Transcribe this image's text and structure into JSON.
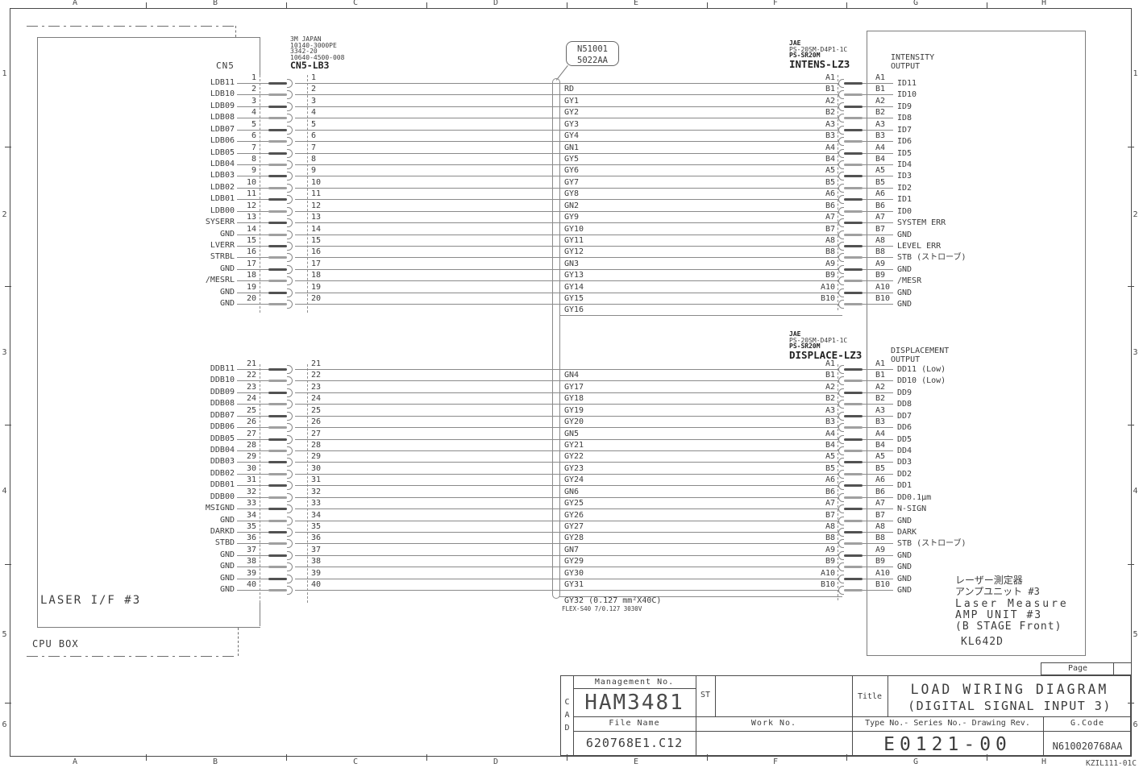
{
  "frame": {
    "columns": [
      "A",
      "B",
      "C",
      "D",
      "E",
      "F",
      "G",
      "H"
    ],
    "rows": [
      "1",
      "2",
      "3",
      "4",
      "5",
      "6"
    ],
    "footnote": "KZIL111-01C"
  },
  "cpu_box": {
    "label": "CPU BOX"
  },
  "laser_if": {
    "label": "LASER I/F #3"
  },
  "cn5": {
    "connector_label": "CN5",
    "maker": "3M JAPAN",
    "part_numbers": [
      "10140-3000PE",
      "3342-20",
      "10640-4500-008"
    ],
    "cable_name": "CN5-LB3"
  },
  "cable_callout": {
    "line1": "N51001",
    "line2": "5022AA"
  },
  "spare_wires": {
    "gy16": "GY16",
    "gy32": "GY32 (0.127 mm²X40C)",
    "gy32_note": "FLEX-S40 7/0.127 3030V"
  },
  "intensity_connector": {
    "maker": "JAE",
    "part_number": "PS-20SM-D4P1-1C",
    "shell": "PS-SR20M",
    "name": "INTENS-LZ3",
    "output_title_line1": "INTENSITY",
    "output_title_line2": "OUTPUT"
  },
  "displacement_connector": {
    "maker": "JAE",
    "part_number": "PS-20SM-D4P1-1C",
    "shell": "PS-SR20M",
    "name": "DISPLACE-LZ3",
    "output_title_line1": "DISPLACEMENT",
    "output_title_line2": "OUTPUT"
  },
  "amp_unit": {
    "label_jp1": "レーザー測定器",
    "label_jp2": "アンプユニット #3",
    "label_en1": "Laser Measure",
    "label_en2": "AMP UNIT #3",
    "label_en3": "(B STAGE Front)",
    "model": "KL642D"
  },
  "section1": {
    "rows": [
      {
        "pin": "1",
        "left": "LDB11",
        "wire": "",
        "ab": "A1",
        "out": "ID11"
      },
      {
        "pin": "2",
        "left": "LDB10",
        "wire": "RD",
        "ab": "B1",
        "out": "ID10"
      },
      {
        "pin": "3",
        "left": "LDB09",
        "wire": "GY1",
        "ab": "A2",
        "out": "ID9"
      },
      {
        "pin": "4",
        "left": "LDB08",
        "wire": "GY2",
        "ab": "B2",
        "out": "ID8"
      },
      {
        "pin": "5",
        "left": "LDB07",
        "wire": "GY3",
        "ab": "A3",
        "out": "ID7"
      },
      {
        "pin": "6",
        "left": "LDB06",
        "wire": "GY4",
        "ab": "B3",
        "out": "ID6"
      },
      {
        "pin": "7",
        "left": "LDB05",
        "wire": "GN1",
        "ab": "A4",
        "out": "ID5"
      },
      {
        "pin": "8",
        "left": "LDB04",
        "wire": "GY5",
        "ab": "B4",
        "out": "ID4"
      },
      {
        "pin": "9",
        "left": "LDB03",
        "wire": "GY6",
        "ab": "A5",
        "out": "ID3"
      },
      {
        "pin": "10",
        "left": "LDB02",
        "wire": "GY7",
        "ab": "B5",
        "out": "ID2"
      },
      {
        "pin": "11",
        "left": "LDB01",
        "wire": "GY8",
        "ab": "A6",
        "out": "ID1"
      },
      {
        "pin": "12",
        "left": "LDB00",
        "wire": "GN2",
        "ab": "B6",
        "out": "ID0"
      },
      {
        "pin": "13",
        "left": "SYSERR",
        "wire": "GY9",
        "ab": "A7",
        "out": "SYSTEM ERR"
      },
      {
        "pin": "14",
        "left": "GND",
        "wire": "GY10",
        "ab": "B7",
        "out": "GND"
      },
      {
        "pin": "15",
        "left": "LVERR",
        "wire": "GY11",
        "ab": "A8",
        "out": "LEVEL ERR"
      },
      {
        "pin": "16",
        "left": "STRBL",
        "wire": "GY12",
        "ab": "B8",
        "out": "STB (ストローブ)"
      },
      {
        "pin": "17",
        "left": "GND",
        "wire": "GN3",
        "ab": "A9",
        "out": "GND"
      },
      {
        "pin": "18",
        "left": "/MESRL",
        "wire": "GY13",
        "ab": "B9",
        "out": "/MESR"
      },
      {
        "pin": "19",
        "left": "GND",
        "wire": "GY14",
        "ab": "A10",
        "out": "GND"
      },
      {
        "pin": "20",
        "left": "GND",
        "wire": "GY15",
        "ab": "B10",
        "out": "GND"
      }
    ]
  },
  "section2": {
    "rows": [
      {
        "pin": "21",
        "left": "DDB11",
        "wire": "",
        "ab": "A1",
        "out": "DD11 (Low)"
      },
      {
        "pin": "22",
        "left": "DDB10",
        "wire": "GN4",
        "ab": "B1",
        "out": "DD10 (Low)"
      },
      {
        "pin": "23",
        "left": "DDB09",
        "wire": "GY17",
        "ab": "A2",
        "out": "DD9"
      },
      {
        "pin": "24",
        "left": "DDB08",
        "wire": "GY18",
        "ab": "B2",
        "out": "DD8"
      },
      {
        "pin": "25",
        "left": "DDB07",
        "wire": "GY19",
        "ab": "A3",
        "out": "DD7"
      },
      {
        "pin": "26",
        "left": "DDB06",
        "wire": "GY20",
        "ab": "B3",
        "out": "DD6"
      },
      {
        "pin": "27",
        "left": "DDB05",
        "wire": "GN5",
        "ab": "A4",
        "out": "DD5"
      },
      {
        "pin": "28",
        "left": "DDB04",
        "wire": "GY21",
        "ab": "B4",
        "out": "DD4"
      },
      {
        "pin": "29",
        "left": "DDB03",
        "wire": "GY22",
        "ab": "A5",
        "out": "DD3"
      },
      {
        "pin": "30",
        "left": "DDB02",
        "wire": "GY23",
        "ab": "B5",
        "out": "DD2"
      },
      {
        "pin": "31",
        "left": "DDB01",
        "wire": "GY24",
        "ab": "A6",
        "out": "DD1"
      },
      {
        "pin": "32",
        "left": "DDB00",
        "wire": "GN6",
        "ab": "B6",
        "out": "DD0.1μm"
      },
      {
        "pin": "33",
        "left": "MSIGND",
        "wire": "GY25",
        "ab": "A7",
        "out": "N-SIGN"
      },
      {
        "pin": "34",
        "left": "GND",
        "wire": "GY26",
        "ab": "B7",
        "out": "GND"
      },
      {
        "pin": "35",
        "left": "DARKD",
        "wire": "GY27",
        "ab": "A8",
        "out": "DARK"
      },
      {
        "pin": "36",
        "left": "STBD",
        "wire": "GY28",
        "ab": "B8",
        "out": "STB (ストローブ)"
      },
      {
        "pin": "37",
        "left": "GND",
        "wire": "GN7",
        "ab": "A9",
        "out": "GND"
      },
      {
        "pin": "38",
        "left": "GND",
        "wire": "GY29",
        "ab": "B9",
        "out": "GND"
      },
      {
        "pin": "39",
        "left": "GND",
        "wire": "GY30",
        "ab": "A10",
        "out": "GND"
      },
      {
        "pin": "40",
        "left": "GND",
        "wire": "GY31",
        "ab": "B10",
        "out": "GND"
      }
    ]
  },
  "title_block": {
    "cad_letters": [
      "C",
      "A",
      "D"
    ],
    "management_label": "Management No.",
    "management_no": "HAM3481",
    "st_label": "ST",
    "file_label": "File Name",
    "file_name": "620768E1.C12",
    "work_label": "Work No.",
    "title_label": "Title",
    "title_line1": "LOAD WIRING DIAGRAM",
    "title_line2": "(DIGITAL SIGNAL INPUT 3)",
    "type_label": "Type No.- Series No.- Drawing Rev.",
    "drawing_no": "E0121-00",
    "gcode_label": "G.Code",
    "gcode": "N610020768AA",
    "page_label": "Page"
  }
}
